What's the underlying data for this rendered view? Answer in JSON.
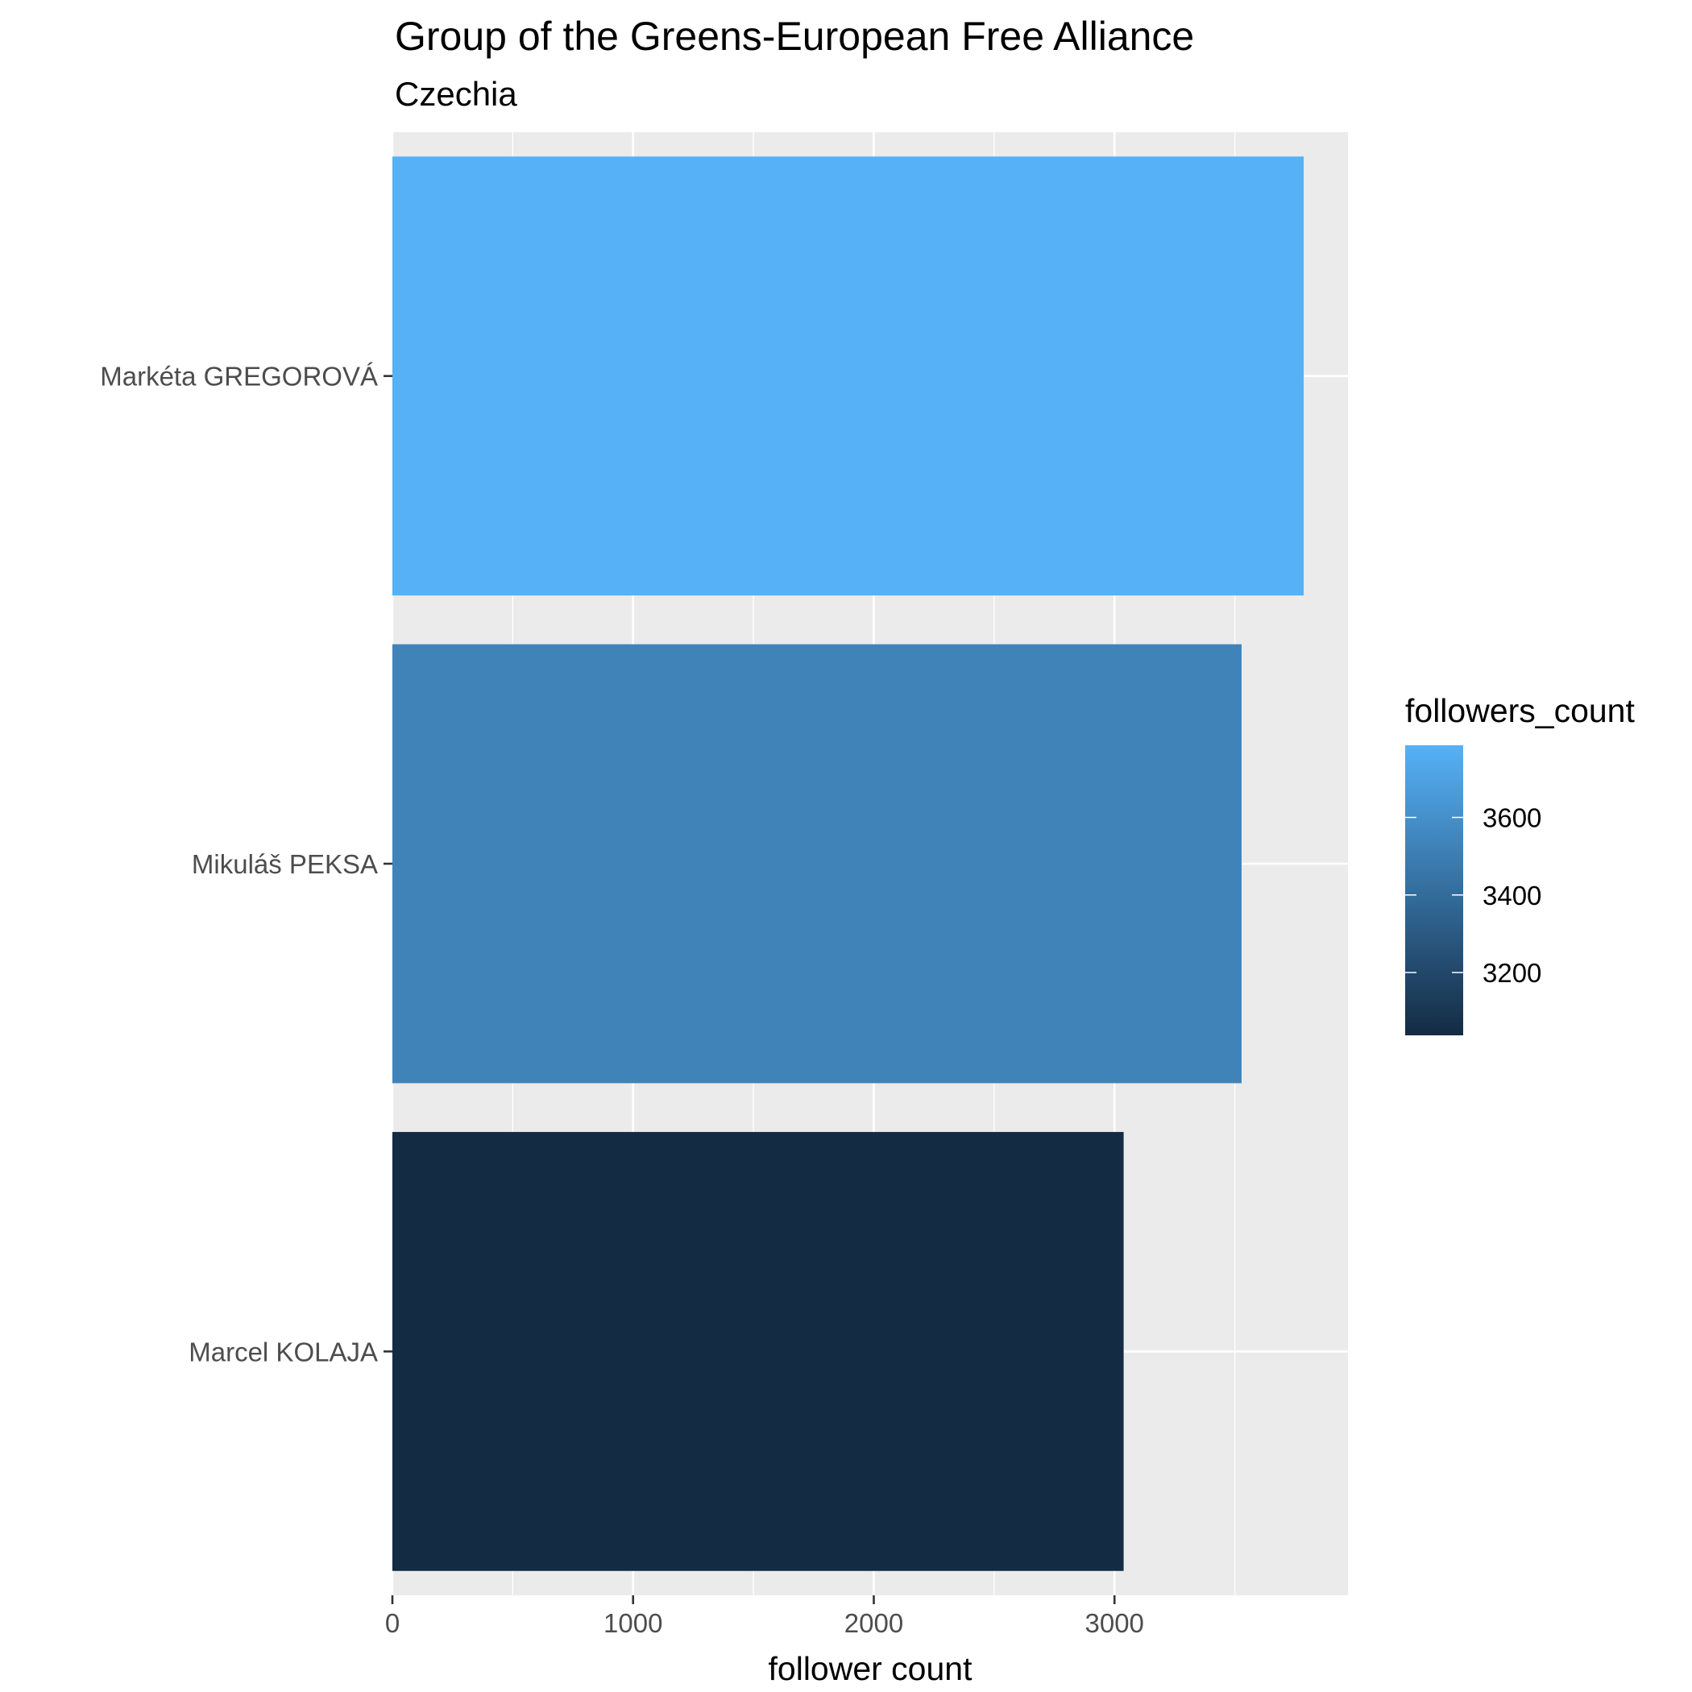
{
  "chart_data": {
    "type": "bar",
    "orientation": "horizontal",
    "title": "Group of the Greens-European Free Alliance",
    "subtitle": "Czechia",
    "xlabel": "follower count",
    "ylabel": "",
    "xlim": [
      0,
      3970
    ],
    "x_ticks": [
      0,
      1000,
      2000,
      3000
    ],
    "x_tick_labels": [
      "0",
      "1000",
      "2000",
      "3000"
    ],
    "categories": [
      "Markéta GREGOROVÁ",
      "Mikuláš PEKSA",
      "Marcel KOLAJA"
    ],
    "values": [
      3786,
      3528,
      3038
    ],
    "fill_scale": {
      "title": "followers_count",
      "low_value": 3038,
      "high_value": 3786,
      "low_color": "#132b43",
      "high_color": "#56b1f7",
      "breaks": [
        3200,
        3400,
        3600
      ],
      "break_labels": [
        "3200",
        "3400",
        "3600"
      ]
    },
    "grid": true,
    "legend_position": "right",
    "panel_background": "#ebebeb",
    "grid_color": "#ffffff"
  }
}
